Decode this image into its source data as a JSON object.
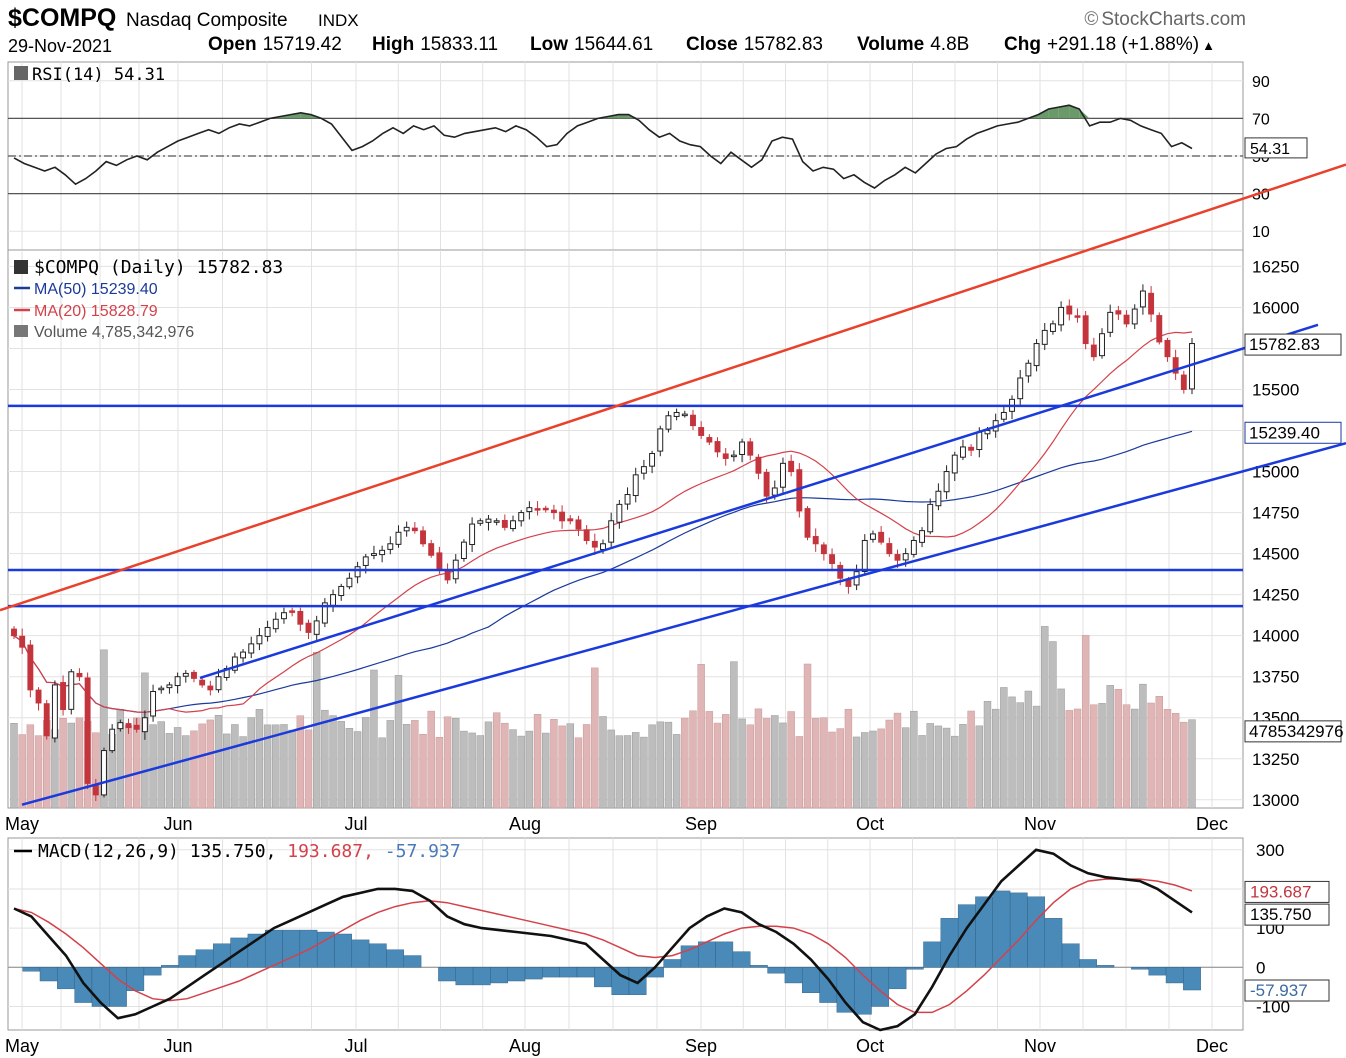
{
  "header": {
    "symbol": "$COMPQ",
    "name": "Nasdaq Composite",
    "exchange": "INDX",
    "brand": "StockCharts.com",
    "brand_icon": "copyright-icon",
    "date": "29-Nov-2021",
    "open_label": "Open",
    "open": "15719.42",
    "high_label": "High",
    "high": "15833.11",
    "low_label": "Low",
    "low": "15644.61",
    "close_label": "Close",
    "close": "15782.83",
    "volume_label": "Volume",
    "volume": "4.8B",
    "chg_label": "Chg",
    "chg": "+291.18 (+1.88%)",
    "chg_icon": "triangle-up-icon"
  },
  "colors": {
    "up": "#222222",
    "down": "#c4343c",
    "ma50": "#1a3a9c",
    "ma20": "#d4414a",
    "trend_red": "#e8412c",
    "trend_blue": "#1a3adc",
    "vol_up": "#bdbdbd",
    "vol_down": "#e0b5b5",
    "hist": "#4a8ab8",
    "rsi_fill": "#6a9a6a",
    "grid": "#e2e2e2"
  },
  "chart_data": [
    {
      "type": "line",
      "title": "RSI(14) 54.31",
      "legend": "RSI(14) 54.31",
      "value_label": "54.31",
      "y_ticks": [
        "90",
        "70",
        "50",
        "30",
        "10"
      ],
      "ylim": [
        0,
        100
      ],
      "reference_lines": [
        70,
        50,
        30
      ],
      "values": [
        49,
        46,
        44,
        42,
        44,
        40,
        35,
        38,
        42,
        47,
        45,
        48,
        50,
        48,
        52,
        55,
        58,
        60,
        62,
        64,
        62,
        65,
        67,
        66,
        68,
        70,
        71,
        72,
        73,
        72,
        70,
        67,
        60,
        53,
        55,
        58,
        62,
        65,
        62,
        66,
        64,
        66,
        61,
        60,
        62,
        63,
        64,
        65,
        63,
        66,
        64,
        60,
        55,
        56,
        62,
        66,
        68,
        70,
        71,
        72,
        72,
        69,
        64,
        60,
        62,
        58,
        56,
        55,
        50,
        46,
        52,
        48,
        44,
        48,
        58,
        60,
        59,
        47,
        42,
        44,
        43,
        38,
        40,
        36,
        33,
        37,
        40,
        44,
        41,
        46,
        51,
        54,
        55,
        59,
        62,
        64,
        66,
        67,
        68,
        70,
        72,
        75,
        76,
        77,
        75,
        66,
        68,
        68,
        70,
        69,
        66,
        64,
        62,
        55,
        57,
        54
      ],
      "x_labels": [
        "May",
        "Jun",
        "Jul",
        "Aug",
        "Sep",
        "Oct",
        "Nov",
        "Dec"
      ]
    },
    {
      "type": "candlestick",
      "title": "$COMPQ (Daily) 15782.83",
      "legend": [
        {
          "name": "$COMPQ (Daily) 15782.83"
        },
        {
          "name": "MA(50) 15239.40"
        },
        {
          "name": "MA(20) 15828.79"
        },
        {
          "name": "Volume 4,785,342,976"
        }
      ],
      "y_ticks": [
        "16250",
        "16000",
        "15750",
        "15500",
        "15250",
        "15000",
        "14750",
        "14500",
        "14250",
        "14000",
        "13750",
        "13500",
        "13250",
        "13000"
      ],
      "ylim": [
        12950,
        16350
      ],
      "x_labels": [
        "May",
        "Jun",
        "Jul",
        "Aug",
        "Sep",
        "Oct",
        "Nov",
        "Dec"
      ],
      "value_labels": {
        "close": "15782.83",
        "ma50": "15239.40",
        "ma20": "15828.79",
        "volume": "4785342976"
      },
      "ma20_end": 15828.79,
      "ma50_end": 15239.4,
      "horizontal_lines": [
        15400,
        14400,
        14180
      ],
      "trendlines": [
        {
          "name": "upper channel",
          "color": "red",
          "from": [
            "May",
            14200
          ],
          "to": [
            "Dec",
            16600
          ]
        },
        {
          "name": "lower channel",
          "color": "blue",
          "from": [
            "May",
            12970
          ],
          "to": [
            "Dec",
            14950
          ]
        },
        {
          "name": "middle channel",
          "color": "blue",
          "from": [
            "Jun",
            13700
          ],
          "to": [
            "Dec",
            15690
          ]
        }
      ],
      "closes": [
        14000,
        13930,
        13670,
        13590,
        13390,
        13700,
        13550,
        13780,
        13750,
        13100,
        13030,
        13300,
        13430,
        13470,
        13440,
        13430,
        13500,
        13660,
        13680,
        13700,
        13750,
        13770,
        13740,
        13700,
        13670,
        13750,
        13800,
        13870,
        13900,
        13950,
        14000,
        14050,
        14100,
        14140,
        14150,
        14070,
        14020,
        14090,
        14200,
        14250,
        14300,
        14350,
        14420,
        14480,
        14500,
        14520,
        14560,
        14630,
        14660,
        14640,
        14560,
        14490,
        14400,
        14340,
        14460,
        14570,
        14680,
        14700,
        14710,
        14700,
        14660,
        14700,
        14750,
        14780,
        14770,
        14770,
        14750,
        14700,
        14700,
        14650,
        14580,
        14540,
        14560,
        14700,
        14800,
        14860,
        14980,
        15030,
        15110,
        15260,
        15340,
        15360,
        15350,
        15280,
        15220,
        15180,
        15120,
        15080,
        15100,
        15180,
        15100,
        14990,
        14850,
        14900,
        15050,
        15000,
        14760,
        14600,
        14560,
        14500,
        14440,
        14350,
        14300,
        14390,
        14580,
        14620,
        14570,
        14500,
        14460,
        14500,
        14580,
        14640,
        14800,
        14880,
        15000,
        15100,
        15150,
        15130,
        15240,
        15250,
        15310,
        15360,
        15440,
        15570,
        15660,
        15780,
        15860,
        15900,
        16000,
        15960,
        15940,
        15780,
        15700,
        15840,
        15970,
        15960,
        15900,
        15990,
        16100,
        15960,
        15790,
        15700,
        15600,
        15500,
        15780
      ],
      "volume_note": "Volume 4,785,342,976"
    },
    {
      "type": "line",
      "title": "MACD(12,26,9) 135.750, 193.687, -57.937",
      "legend": [
        {
          "name": "MACD(12,26,9) 135.750"
        },
        {
          "name": "193.687"
        },
        {
          "name": "-57.937"
        }
      ],
      "value_labels": {
        "signal": "193.687",
        "macd": "135.750",
        "hist": "-57.937"
      },
      "y_ticks": [
        "300",
        "200",
        "100",
        "0",
        "-100"
      ],
      "ylim": [
        -160,
        330
      ],
      "x_labels": [
        "May",
        "Jun",
        "Jul",
        "Aug",
        "Sep",
        "Oct",
        "Nov",
        "Dec"
      ],
      "macd": [
        150,
        130,
        80,
        30,
        -40,
        -90,
        -130,
        -120,
        -100,
        -80,
        -50,
        -20,
        10,
        40,
        70,
        100,
        120,
        140,
        160,
        180,
        190,
        200,
        200,
        195,
        170,
        130,
        110,
        100,
        95,
        90,
        85,
        80,
        70,
        60,
        20,
        -20,
        -40,
        0,
        50,
        100,
        130,
        150,
        140,
        110,
        90,
        60,
        20,
        -30,
        -90,
        -140,
        -160,
        -150,
        -120,
        -50,
        30,
        100,
        160,
        220,
        260,
        300,
        290,
        260,
        240,
        230,
        225,
        220,
        200,
        170,
        140
      ],
      "signal": [
        150,
        140,
        115,
        85,
        50,
        10,
        -30,
        -60,
        -80,
        -85,
        -80,
        -65,
        -50,
        -35,
        -15,
        5,
        25,
        45,
        70,
        95,
        120,
        140,
        155,
        165,
        170,
        165,
        155,
        145,
        135,
        125,
        115,
        105,
        95,
        85,
        70,
        50,
        30,
        25,
        30,
        45,
        65,
        85,
        100,
        105,
        105,
        100,
        85,
        60,
        25,
        -20,
        -60,
        -95,
        -115,
        -115,
        -95,
        -60,
        -20,
        25,
        70,
        120,
        165,
        200,
        220,
        225,
        225,
        225,
        220,
        210,
        195
      ],
      "histogram": [
        0,
        -10,
        -35,
        -55,
        -90,
        -100,
        -100,
        -60,
        -20,
        5,
        30,
        45,
        60,
        75,
        85,
        95,
        95,
        95,
        90,
        85,
        70,
        60,
        45,
        30,
        0,
        -35,
        -45,
        -45,
        -40,
        -35,
        -30,
        -25,
        -25,
        -25,
        -50,
        -70,
        -70,
        -25,
        20,
        55,
        65,
        65,
        40,
        5,
        -15,
        -40,
        -65,
        -90,
        -115,
        -120,
        -100,
        -55,
        -5,
        65,
        125,
        160,
        180,
        195,
        190,
        180,
        125,
        60,
        20,
        5,
        0,
        -5,
        -20,
        -40,
        -58
      ]
    }
  ]
}
